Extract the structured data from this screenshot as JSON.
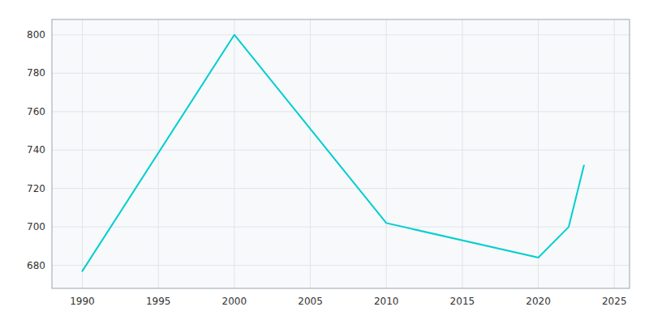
{
  "chart_data": {
    "type": "line",
    "x": [
      1990,
      2000,
      2010,
      2020,
      2022,
      2023
    ],
    "values": [
      677,
      800,
      702,
      684,
      700,
      732
    ],
    "color": "#00CED1",
    "xlim": [
      1988,
      2026
    ],
    "ylim": [
      668,
      808
    ],
    "xticks": [
      1990,
      1995,
      2000,
      2005,
      2010,
      2015,
      2020,
      2025
    ],
    "yticks": [
      680,
      700,
      720,
      740,
      760,
      780,
      800
    ],
    "grid": true
  }
}
